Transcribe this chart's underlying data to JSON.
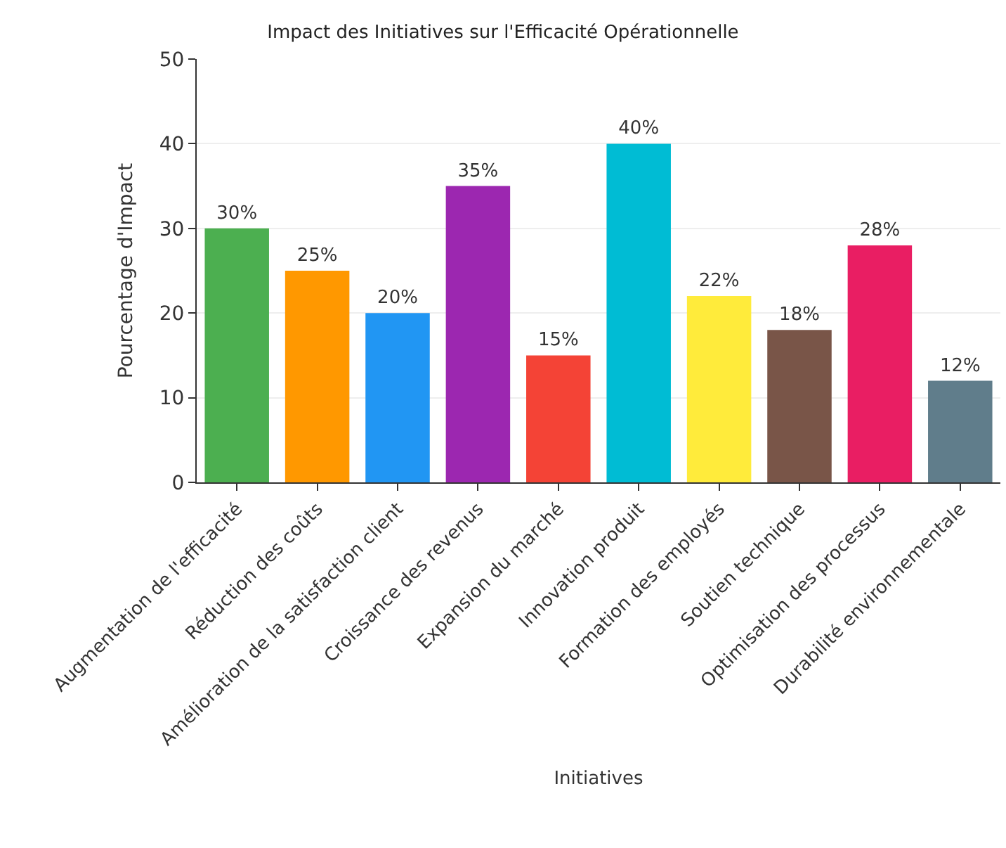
{
  "chart_data": {
    "type": "bar",
    "title": "Impact des Initiatives sur l'Efficacité Opérationnelle",
    "xlabel": "Initiatives",
    "ylabel": "Pourcentage d'Impact",
    "categories": [
      "Augmentation de l'efficacité",
      "Réduction des coûts",
      "Amélioration de la satisfaction client",
      "Croissance des revenus",
      "Expansion du marché",
      "Innovation produit",
      "Formation des employés",
      "Soutien technique",
      "Optimisation des processus",
      "Durabilité environnementale"
    ],
    "values": [
      30,
      25,
      20,
      35,
      15,
      40,
      22,
      18,
      28,
      12
    ],
    "value_labels": [
      "30%",
      "25%",
      "20%",
      "35%",
      "15%",
      "40%",
      "22%",
      "18%",
      "28%",
      "12%"
    ],
    "colors": [
      "#4caf50",
      "#ff9800",
      "#2196f3",
      "#9c27b0",
      "#f44336",
      "#00bcd4",
      "#ffeb3b",
      "#795548",
      "#e91e63",
      "#607d8b"
    ],
    "ylim": [
      0,
      50
    ],
    "yticks": [
      0,
      10,
      20,
      30,
      40,
      50
    ],
    "grid": "y",
    "legend": false
  }
}
